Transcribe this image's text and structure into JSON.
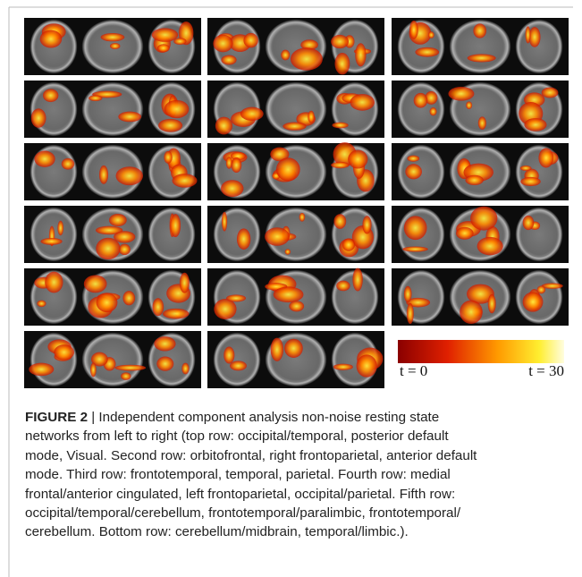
{
  "figure": {
    "colorbar": {
      "min_label": "t = 0",
      "max_label": "t = 30"
    },
    "caption": {
      "label": "FIGURE 2",
      "lines": [
        " | Independent component analysis non-noise resting state",
        "networks from left to right (top row: occipital/temporal, posterior default",
        "mode, Visual. Second row: orbitofrontal, right frontoparietal, anterior default",
        "mode. Third row: frontotemporal, temporal, parietal. Fourth row: medial",
        "frontal/anterior cingulated, left frontoparietal, occipital/parietal. Fifth row:",
        "occipital/temporal/cerebellum, frontotemporal/paralimbic, frontotemporal/",
        "cerebellum. Bottom row: cerebellum/midbrain, temporal/limbic.)."
      ]
    }
  }
}
